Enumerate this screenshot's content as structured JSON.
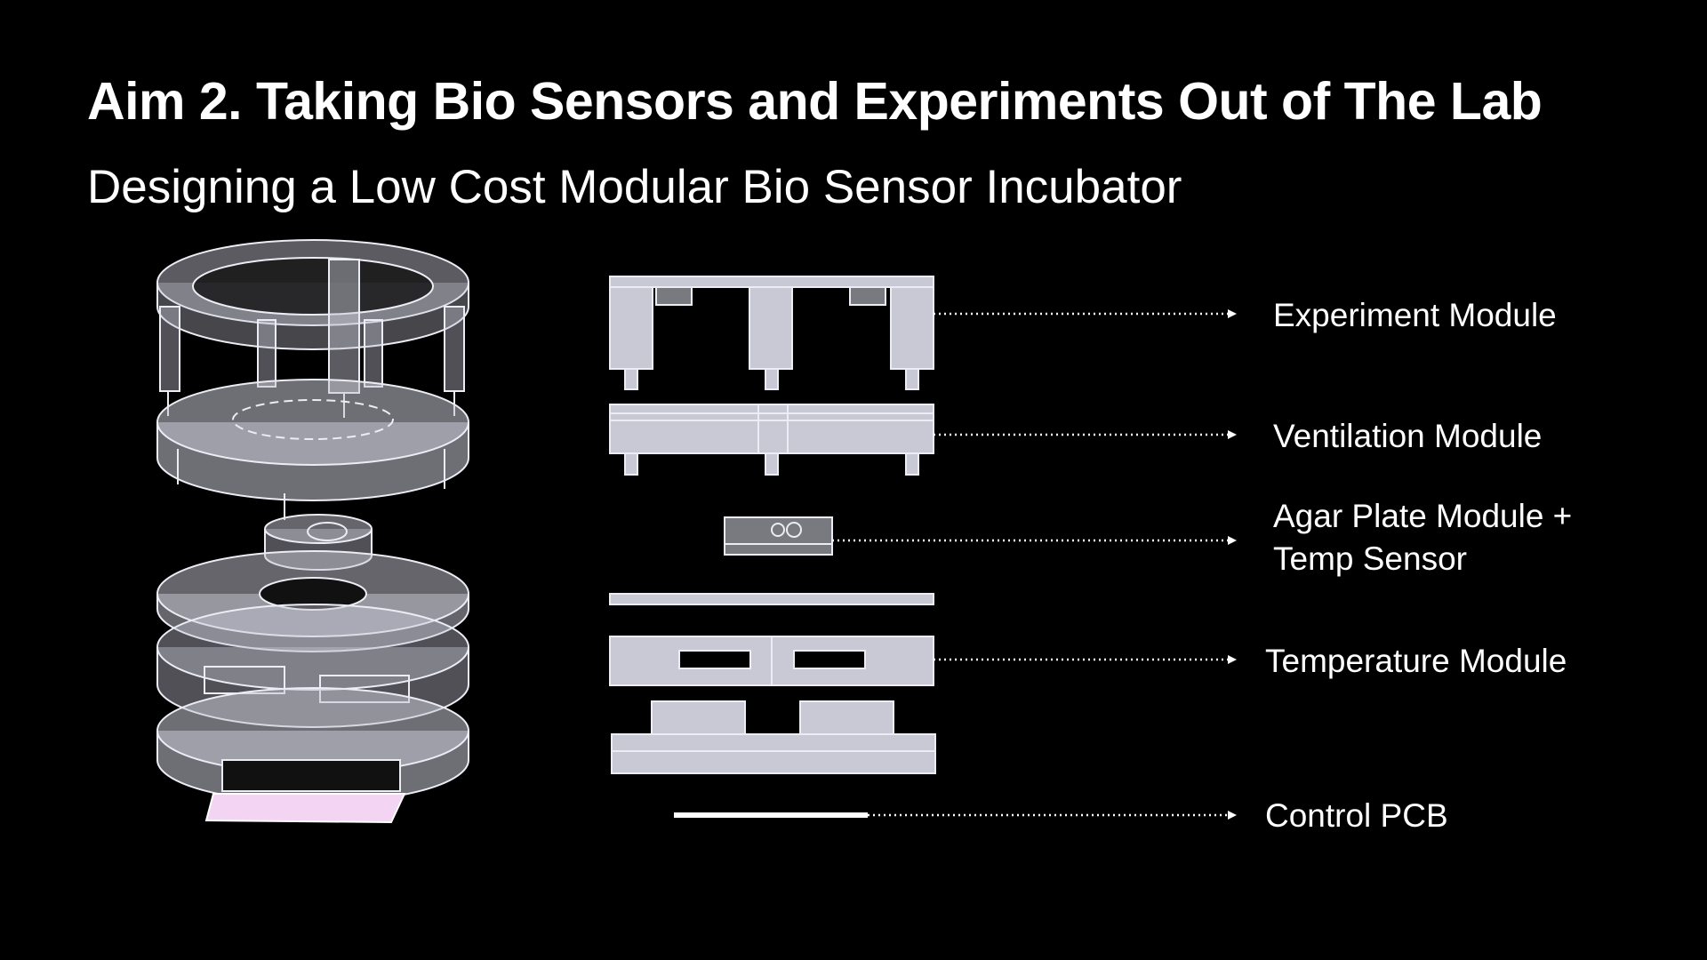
{
  "slide": {
    "title": "Aim 2. Taking Bio Sensors and Experiments Out of The Lab",
    "subtitle": "Designing a Low Cost Modular Bio Sensor Incubator"
  },
  "modules": [
    {
      "id": "experiment",
      "label": "Experiment Module"
    },
    {
      "id": "ventilation",
      "label": "Ventilation Module"
    },
    {
      "id": "agar",
      "label_line1": "Agar Plate Module +",
      "label_line2": "Temp Sensor"
    },
    {
      "id": "temperature",
      "label": "Temperature Module"
    },
    {
      "id": "pcb",
      "label": "Control PCB"
    }
  ],
  "colors": {
    "background": "#000000",
    "text": "#ffffff",
    "part_fill": "#c9c9d6",
    "part_stroke": "#ececf4",
    "pcb_pink": "#f3d4f3"
  }
}
